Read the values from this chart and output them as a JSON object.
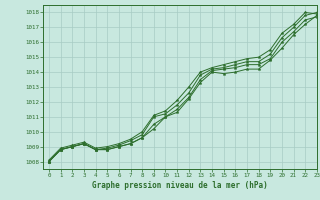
{
  "title": "Graphe pression niveau de la mer (hPa)",
  "xlim": [
    -0.5,
    23
  ],
  "ylim": [
    1007.5,
    1018.5
  ],
  "yticks": [
    1008,
    1009,
    1010,
    1011,
    1012,
    1013,
    1014,
    1015,
    1016,
    1017,
    1018
  ],
  "xticks": [
    0,
    1,
    2,
    3,
    4,
    5,
    6,
    7,
    8,
    9,
    10,
    11,
    12,
    13,
    14,
    15,
    16,
    17,
    18,
    19,
    20,
    21,
    22,
    23
  ],
  "bg_color": "#c8e8df",
  "grid_color": "#a8ccc4",
  "line_color": "#2d6e2d",
  "series1": [
    1008.0,
    1008.8,
    1009.0,
    1009.2,
    1008.8,
    1008.8,
    1009.0,
    1009.2,
    1009.6,
    1010.2,
    1011.0,
    1011.3,
    1012.2,
    1013.3,
    1014.0,
    1013.9,
    1014.0,
    1014.2,
    1014.2,
    1014.8,
    1015.6,
    1016.5,
    1017.2,
    1017.8
  ],
  "series2": [
    1008.0,
    1008.8,
    1009.0,
    1009.2,
    1008.8,
    1008.8,
    1009.0,
    1009.2,
    1009.6,
    1010.5,
    1011.0,
    1011.5,
    1012.3,
    1013.5,
    1014.1,
    1014.2,
    1014.3,
    1014.5,
    1014.5,
    1014.9,
    1016.0,
    1016.7,
    1017.5,
    1017.7
  ],
  "series3": [
    1008.0,
    1008.8,
    1009.0,
    1009.2,
    1008.8,
    1008.9,
    1009.1,
    1009.4,
    1009.8,
    1011.0,
    1011.2,
    1011.8,
    1012.6,
    1013.8,
    1014.2,
    1014.3,
    1014.5,
    1014.7,
    1014.7,
    1015.2,
    1016.3,
    1017.0,
    1017.8,
    1018.0
  ],
  "series4": [
    1008.1,
    1008.9,
    1009.1,
    1009.3,
    1008.9,
    1009.0,
    1009.2,
    1009.5,
    1010.0,
    1011.1,
    1011.4,
    1012.1,
    1013.0,
    1014.0,
    1014.3,
    1014.5,
    1014.7,
    1014.9,
    1015.0,
    1015.5,
    1016.6,
    1017.2,
    1018.0,
    1017.9
  ]
}
